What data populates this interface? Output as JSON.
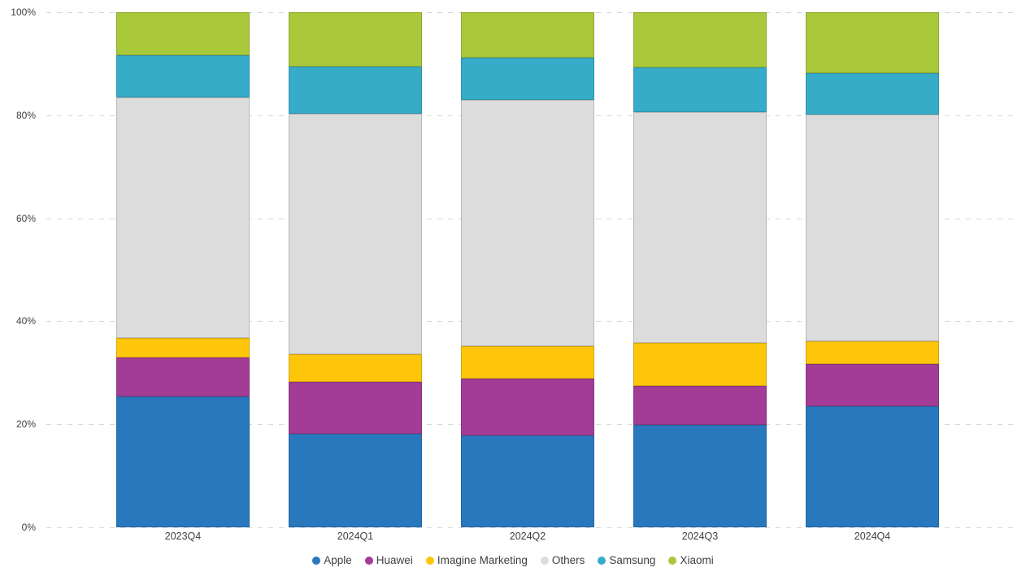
{
  "chart_data": {
    "type": "bar",
    "subtype": "stacked-100-percent-column",
    "title": "",
    "xlabel": "",
    "ylabel": "",
    "ylim": [
      0,
      100
    ],
    "grid": "horizontal-dashed",
    "legend_position": "bottom-center",
    "categories": [
      "2023Q4",
      "2024Q1",
      "2024Q2",
      "2024Q3",
      "2024Q4"
    ],
    "y_ticks": [
      {
        "value": 0,
        "label": "0%"
      },
      {
        "value": 20,
        "label": "20%"
      },
      {
        "value": 40,
        "label": "40%"
      },
      {
        "value": 60,
        "label": "60%"
      },
      {
        "value": 80,
        "label": "80%"
      },
      {
        "value": 100,
        "label": "100%"
      }
    ],
    "series": [
      {
        "name": "Apple",
        "color": "#2878BE",
        "values": [
          25.4,
          18.2,
          17.9,
          19.8,
          23.5
        ]
      },
      {
        "name": "Huawei",
        "color": "#A23C96",
        "values": [
          7.5,
          10.1,
          11.0,
          7.7,
          8.2
        ]
      },
      {
        "name": "Imagine Marketing",
        "color": "#FEC60B",
        "values": [
          3.9,
          5.3,
          6.2,
          8.3,
          4.4
        ]
      },
      {
        "name": "Others",
        "color": "#DCDCDC",
        "values": [
          46.6,
          46.7,
          47.8,
          44.8,
          44.0
        ]
      },
      {
        "name": "Samsung",
        "color": "#36ACC8",
        "values": [
          8.3,
          9.2,
          8.3,
          8.7,
          8.1
        ]
      },
      {
        "name": "Xiaomi",
        "color": "#A9C93A",
        "values": [
          8.3,
          10.5,
          8.8,
          10.7,
          11.8
        ]
      }
    ],
    "colors": {
      "grid": "#D8D8D8",
      "tick_text": "#3F3F3F",
      "background": "#FFFFFF"
    }
  }
}
